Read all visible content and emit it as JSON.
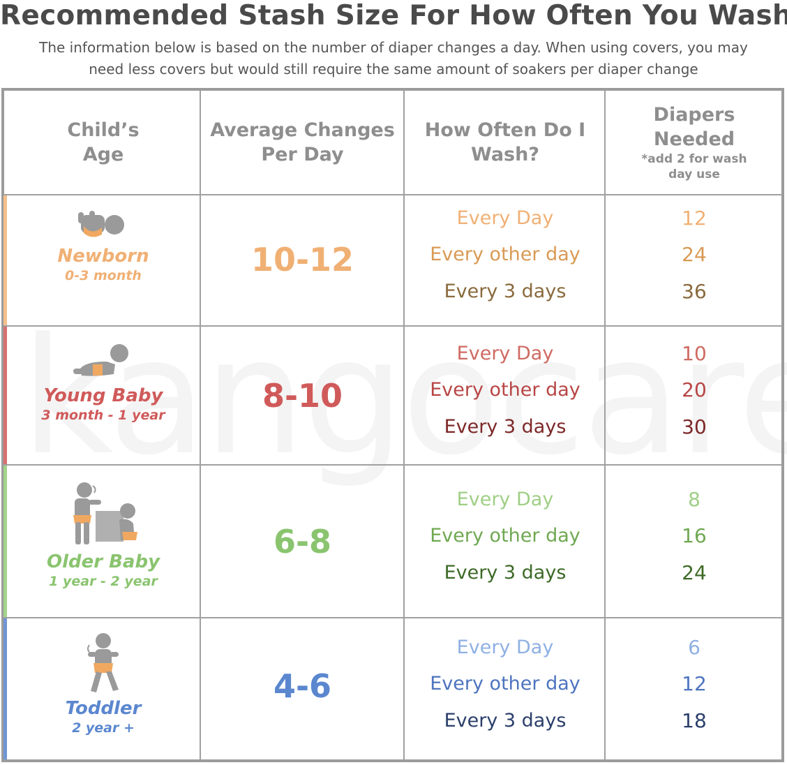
{
  "title": "Recommended Stash Size For How Often You Wash",
  "subtitle": {
    "line1": "The information below is based on the number of diaper changes a day. When using covers, you may",
    "line2": "need less covers but would still require the same amount of soakers per diaper change"
  },
  "watermark": "kangocare",
  "headers": {
    "age_line1": "Child’s",
    "age_line2": "Age",
    "avg_line1": "Average Changes",
    "avg_line2": "Per Day",
    "wash_line1": "How Often Do I",
    "wash_line2": "Wash?",
    "need_line1": "Diapers",
    "need_line2": "Needed",
    "need_note1": "*add 2 for wash",
    "need_note2": "day use"
  },
  "rows": [
    {
      "icon": "newborn-baby-icon",
      "name": "Newborn",
      "range": "0-3 month",
      "avg": "10-12",
      "color": "#f0b074",
      "frequencies": [
        "Every Day",
        "Every other day",
        "Every 3 days"
      ],
      "freq_colors": [
        "#f0b074",
        "#d99a55",
        "#8a6a3d"
      ],
      "diapers": [
        "12",
        "24",
        "36"
      ]
    },
    {
      "icon": "crawling-baby-icon",
      "name": "Young Baby",
      "range": "3 month - 1 year",
      "avg": "8-10",
      "color": "#d05a5a",
      "frequencies": [
        "Every Day",
        "Every other day",
        "Every 3 days"
      ],
      "freq_colors": [
        "#cf6a62",
        "#b84545",
        "#7d2828"
      ],
      "diapers": [
        "10",
        "20",
        "30"
      ]
    },
    {
      "icon": "older-baby-icon",
      "name": "Older Baby",
      "range": "1 year - 2 year",
      "avg": "6-8",
      "color": "#8ac46f",
      "frequencies": [
        "Every Day",
        "Every other day",
        "Every 3 days"
      ],
      "freq_colors": [
        "#9fcf85",
        "#6fa851",
        "#3e6a27"
      ],
      "diapers": [
        "8",
        "16",
        "24"
      ]
    },
    {
      "icon": "toddler-walking-icon",
      "name": "Toddler",
      "range": "2 year +",
      "avg": "4-6",
      "color": "#5b87cf",
      "frequencies": [
        "Every Day",
        "Every other day",
        "Every 3 days"
      ],
      "freq_colors": [
        "#8fb0e3",
        "#4d74bf",
        "#2b3f6b"
      ],
      "diapers": [
        "6",
        "12",
        "18"
      ]
    }
  ]
}
